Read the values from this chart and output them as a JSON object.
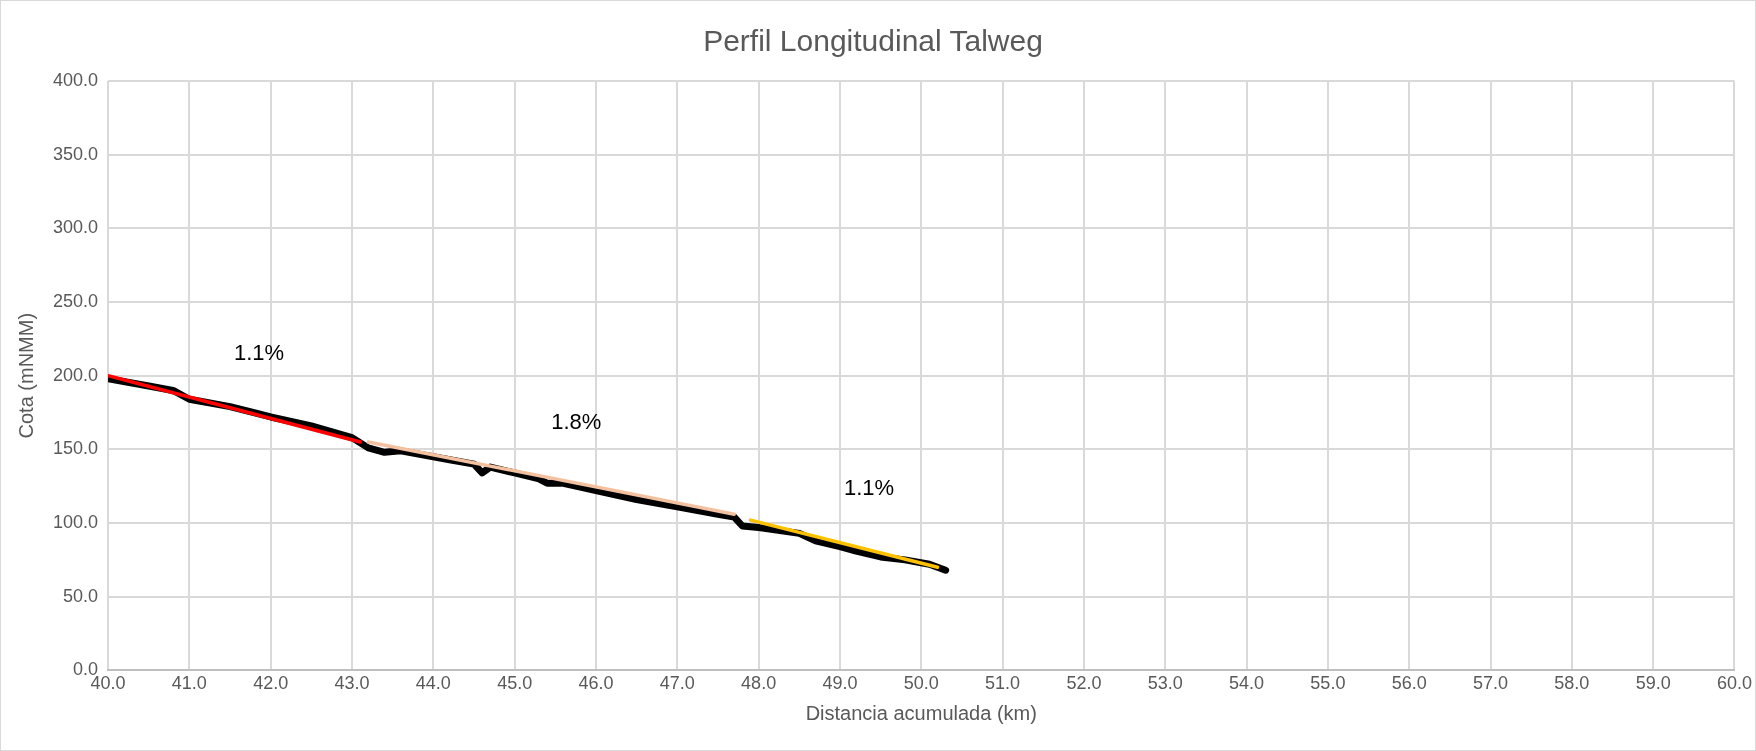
{
  "chart_data": {
    "type": "line",
    "title": "Perfil Longitudinal Talweg",
    "xlabel": "Distancia acumulada (km)",
    "ylabel": "Cota (mNMM)",
    "xlim": [
      40,
      60
    ],
    "xticks": [
      {
        "value": 40,
        "label": "40.0"
      },
      {
        "value": 41,
        "label": "41.0"
      },
      {
        "value": 42,
        "label": "42.0"
      },
      {
        "value": 43,
        "label": "43.0"
      },
      {
        "value": 44,
        "label": "44.0"
      },
      {
        "value": 45,
        "label": "45.0"
      },
      {
        "value": 46,
        "label": "46.0"
      },
      {
        "value": 47,
        "label": "47.0"
      },
      {
        "value": 48,
        "label": "48.0"
      },
      {
        "value": 49,
        "label": "49.0"
      },
      {
        "value": 50,
        "label": "50.0"
      },
      {
        "value": 51,
        "label": "51.0"
      },
      {
        "value": 52,
        "label": "52.0"
      },
      {
        "value": 53,
        "label": "53.0"
      },
      {
        "value": 54,
        "label": "54.0"
      },
      {
        "value": 55,
        "label": "55.0"
      },
      {
        "value": 56,
        "label": "56.0"
      },
      {
        "value": 57,
        "label": "57.0"
      },
      {
        "value": 58,
        "label": "58.0"
      },
      {
        "value": 59,
        "label": "59.0"
      },
      {
        "value": 60,
        "label": "60.0"
      }
    ],
    "ylim": [
      0,
      400
    ],
    "yticks": [
      {
        "value": 0,
        "label": "0.0"
      },
      {
        "value": 50,
        "label": "50.0"
      },
      {
        "value": 100,
        "label": "100.0"
      },
      {
        "value": 150,
        "label": "150.0"
      },
      {
        "value": 200,
        "label": "200.0"
      },
      {
        "value": 250,
        "label": "250.0"
      },
      {
        "value": 300,
        "label": "300.0"
      },
      {
        "value": 350,
        "label": "350.0"
      },
      {
        "value": 400,
        "label": "400.0"
      }
    ],
    "grid": true,
    "legend": false,
    "marker": "none",
    "series": [
      {
        "color": "#000000",
        "x": [
          40.0,
          40.5,
          40.8,
          41.0,
          41.5,
          42.0,
          42.5,
          43.0,
          43.2,
          43.4,
          43.6,
          44.0,
          44.2,
          44.5,
          44.6,
          44.7,
          45.0,
          45.3,
          45.4,
          45.6,
          46.0,
          46.5,
          47.0,
          47.5,
          47.7,
          47.8,
          48.0,
          48.5,
          48.7,
          49.0,
          49.2,
          49.5,
          49.8,
          50.1,
          50.3
        ],
        "values": [
          198,
          193,
          190,
          184,
          179,
          172,
          166,
          158,
          151,
          148,
          149,
          145,
          143,
          140,
          134,
          138,
          134,
          130,
          127,
          127,
          122,
          116,
          111,
          106,
          104,
          98,
          97,
          93,
          88,
          84,
          81,
          77,
          75,
          72,
          68
        ]
      },
      {
        "color": "#ff0000",
        "x": [
          40.0,
          43.1
        ],
        "values": [
          200,
          155
        ]
      },
      {
        "color": "#f4c1a0",
        "x": [
          43.2,
          47.7
        ],
        "values": [
          155,
          106
        ]
      },
      {
        "color": "#ffc000",
        "x": [
          47.9,
          50.2
        ],
        "values": [
          102,
          70
        ]
      }
    ],
    "annotations": [
      "1.1%",
      "1.8%",
      "1.1%"
    ]
  }
}
